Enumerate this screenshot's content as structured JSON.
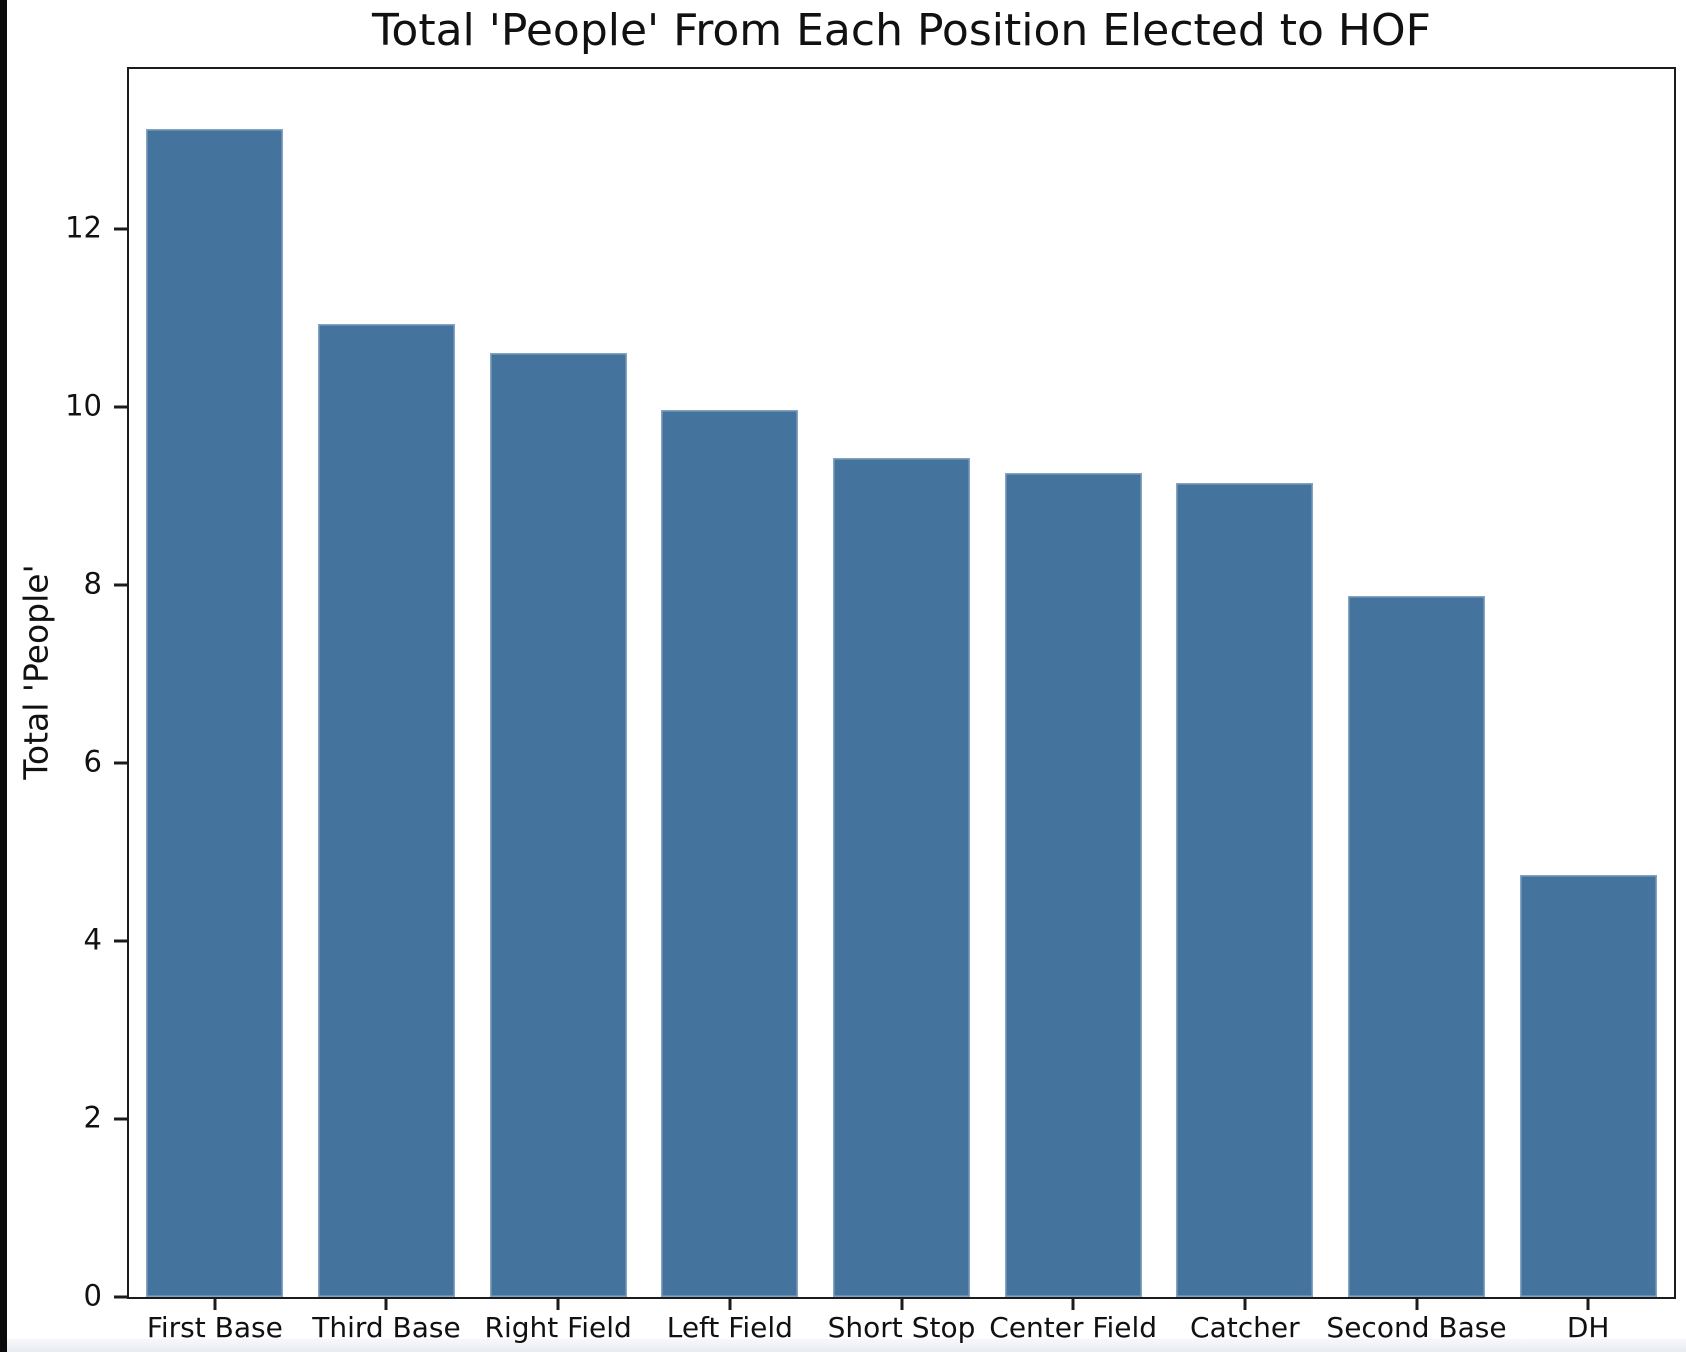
{
  "figure": {
    "title": "Total 'People' From Each Position Elected to HOF",
    "ylabel": "Total 'People'"
  },
  "chart_data": {
    "type": "bar",
    "title": "Total 'People' From Each Position Elected to HOF",
    "xlabel": "",
    "ylabel": "Total 'People'",
    "categories": [
      "First Base",
      "Third Base",
      "Right Field",
      "Left Field",
      "Short Stop",
      "Center Field",
      "Catcher",
      "Second Base",
      "DH"
    ],
    "values": [
      13.13,
      10.93,
      10.61,
      9.97,
      9.43,
      9.26,
      9.15,
      7.88,
      4.74
    ],
    "yticks": [
      0,
      2,
      4,
      6,
      8,
      10,
      12
    ],
    "ylim": [
      0,
      13.8
    ],
    "bar_width_fraction": 0.8,
    "grid": false,
    "legend_position": "none",
    "colors": {
      "bar": "#44739D",
      "spine": "#1b1b1b",
      "text": "#111111",
      "background": "#ffffff"
    }
  }
}
